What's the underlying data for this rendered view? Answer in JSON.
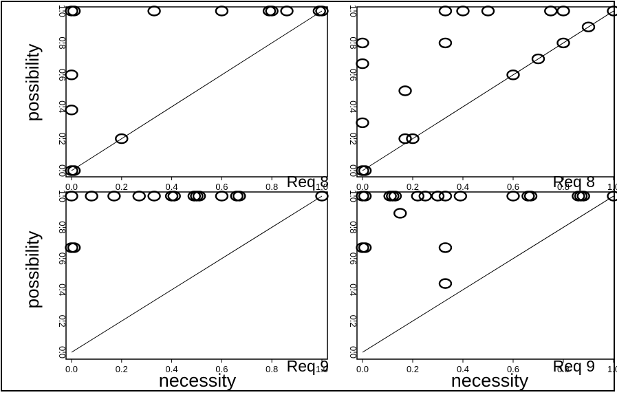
{
  "figure": {
    "xlabel": "necessity",
    "ylabel": "possibility"
  },
  "chart_data": [
    {
      "type": "scatter",
      "panel": "top-left",
      "annotation": "Req 8",
      "xlim": [
        0,
        1
      ],
      "ylim": [
        0,
        1
      ],
      "x_ticks": [
        "0.0",
        "0.2",
        "0.4",
        "0.6",
        "0.8",
        "1.0"
      ],
      "y_ticks": [
        "0.0",
        "0.2",
        "0.4",
        "0.6",
        "0.8",
        "1.0"
      ],
      "reference_line": "y = x",
      "points": [
        {
          "x": 0.0,
          "y": 1.0
        },
        {
          "x": 0.01,
          "y": 1.0
        },
        {
          "x": 0.33,
          "y": 1.0
        },
        {
          "x": 0.6,
          "y": 1.0
        },
        {
          "x": 0.79,
          "y": 1.0
        },
        {
          "x": 0.8,
          "y": 1.0
        },
        {
          "x": 0.86,
          "y": 1.0
        },
        {
          "x": 0.99,
          "y": 1.0
        },
        {
          "x": 1.0,
          "y": 1.0
        },
        {
          "x": 0.0,
          "y": 0.6
        },
        {
          "x": 0.0,
          "y": 0.38
        },
        {
          "x": 0.2,
          "y": 0.2
        },
        {
          "x": 0.0,
          "y": 0.0
        },
        {
          "x": 0.01,
          "y": 0.0
        }
      ]
    },
    {
      "type": "scatter",
      "panel": "top-right",
      "annotation": "Req 8",
      "xlim": [
        0,
        1
      ],
      "ylim": [
        0,
        1
      ],
      "x_ticks": [
        "0.0",
        "0.2",
        "0.4",
        "0.6",
        "0.8",
        "1.0"
      ],
      "y_ticks": [
        "0.0",
        "0.2",
        "0.4",
        "0.6",
        "0.8",
        "1.0"
      ],
      "reference_line": "y = x",
      "points": [
        {
          "x": 0.33,
          "y": 1.0
        },
        {
          "x": 0.4,
          "y": 1.0
        },
        {
          "x": 0.5,
          "y": 1.0
        },
        {
          "x": 0.75,
          "y": 1.0
        },
        {
          "x": 0.8,
          "y": 1.0
        },
        {
          "x": 1.0,
          "y": 1.0
        },
        {
          "x": 0.9,
          "y": 0.9
        },
        {
          "x": 0.0,
          "y": 0.8
        },
        {
          "x": 0.33,
          "y": 0.8
        },
        {
          "x": 0.8,
          "y": 0.8
        },
        {
          "x": 0.7,
          "y": 0.7
        },
        {
          "x": 0.0,
          "y": 0.67
        },
        {
          "x": 0.6,
          "y": 0.6
        },
        {
          "x": 0.17,
          "y": 0.5
        },
        {
          "x": 0.0,
          "y": 0.3
        },
        {
          "x": 0.17,
          "y": 0.2
        },
        {
          "x": 0.2,
          "y": 0.2
        },
        {
          "x": 0.0,
          "y": 0.0
        },
        {
          "x": 0.01,
          "y": 0.0
        }
      ]
    },
    {
      "type": "scatter",
      "panel": "bottom-left",
      "annotation": "Req 9",
      "xlim": [
        0,
        1
      ],
      "ylim": [
        0,
        1
      ],
      "x_ticks": [
        "0.0",
        "0.2",
        "0.4",
        "0.6",
        "0.8",
        "1.0"
      ],
      "y_ticks": [
        "0.0",
        "0.2",
        "0.4",
        "0.6",
        "0.8",
        "1.0"
      ],
      "reference_line": "y = x",
      "points": [
        {
          "x": 0.0,
          "y": 1.0
        },
        {
          "x": 0.08,
          "y": 1.0
        },
        {
          "x": 0.17,
          "y": 1.0
        },
        {
          "x": 0.27,
          "y": 1.0
        },
        {
          "x": 0.33,
          "y": 1.0
        },
        {
          "x": 0.4,
          "y": 1.0
        },
        {
          "x": 0.41,
          "y": 1.0
        },
        {
          "x": 0.49,
          "y": 1.0
        },
        {
          "x": 0.5,
          "y": 1.0
        },
        {
          "x": 0.51,
          "y": 1.0
        },
        {
          "x": 0.6,
          "y": 1.0
        },
        {
          "x": 0.66,
          "y": 1.0
        },
        {
          "x": 0.67,
          "y": 1.0
        },
        {
          "x": 1.0,
          "y": 1.0
        },
        {
          "x": 0.0,
          "y": 0.67
        },
        {
          "x": 0.01,
          "y": 0.67
        }
      ]
    },
    {
      "type": "scatter",
      "panel": "bottom-right",
      "annotation": "Req 9",
      "xlim": [
        0,
        1
      ],
      "ylim": [
        0,
        1
      ],
      "x_ticks": [
        "0.0",
        "0.2",
        "0.4",
        "0.6",
        "0.8",
        "1.0"
      ],
      "y_ticks": [
        "0.0",
        "0.2",
        "0.4",
        "0.6",
        "0.8",
        "1.0"
      ],
      "reference_line": "y = x",
      "points": [
        {
          "x": 0.0,
          "y": 1.0
        },
        {
          "x": 0.01,
          "y": 1.0
        },
        {
          "x": 0.11,
          "y": 1.0
        },
        {
          "x": 0.12,
          "y": 1.0
        },
        {
          "x": 0.13,
          "y": 1.0
        },
        {
          "x": 0.22,
          "y": 1.0
        },
        {
          "x": 0.25,
          "y": 1.0
        },
        {
          "x": 0.3,
          "y": 1.0
        },
        {
          "x": 0.33,
          "y": 1.0
        },
        {
          "x": 0.39,
          "y": 1.0
        },
        {
          "x": 0.6,
          "y": 1.0
        },
        {
          "x": 0.66,
          "y": 1.0
        },
        {
          "x": 0.67,
          "y": 1.0
        },
        {
          "x": 0.86,
          "y": 1.0
        },
        {
          "x": 0.87,
          "y": 1.0
        },
        {
          "x": 0.88,
          "y": 1.0
        },
        {
          "x": 1.0,
          "y": 1.0
        },
        {
          "x": 0.15,
          "y": 0.89
        },
        {
          "x": 0.0,
          "y": 0.67
        },
        {
          "x": 0.01,
          "y": 0.67
        },
        {
          "x": 0.33,
          "y": 0.67
        },
        {
          "x": 0.33,
          "y": 0.44
        }
      ]
    }
  ]
}
